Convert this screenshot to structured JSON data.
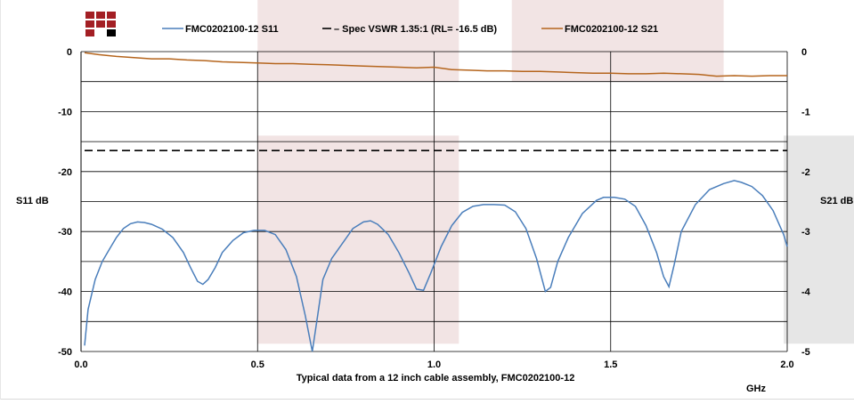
{
  "chart_data": {
    "type": "line",
    "title": "",
    "xlabel": "Typical data from a 12 inch cable assembly, FMC0202100-12",
    "xunit": "GHz",
    "ylabel_left": "S11 dB",
    "ylabel_right": "S21 dB",
    "xlim": [
      0,
      2.0
    ],
    "ylim_left": [
      -50,
      0
    ],
    "ylim_right": [
      -5,
      0
    ],
    "x_ticks": [
      "0.0",
      "0.5",
      "1.0",
      "1.5",
      "2.0"
    ],
    "y_ticks_left": [
      "0",
      "-10",
      "-20",
      "-30",
      "-40",
      "-50"
    ],
    "y_ticks_right": [
      "0",
      "-1",
      "-2",
      "-3",
      "-4",
      "-5"
    ],
    "grid": true,
    "legend_position": "top",
    "series": [
      {
        "name": "FMC0202100-12 S11",
        "axis": "left",
        "color": "#4a7ebb",
        "style": "solid",
        "points": [
          [
            0.01,
            -49
          ],
          [
            0.02,
            -43
          ],
          [
            0.04,
            -38
          ],
          [
            0.06,
            -35
          ],
          [
            0.08,
            -33
          ],
          [
            0.1,
            -31
          ],
          [
            0.12,
            -29.5
          ],
          [
            0.14,
            -28.7
          ],
          [
            0.16,
            -28.4
          ],
          [
            0.18,
            -28.5
          ],
          [
            0.2,
            -28.8
          ],
          [
            0.23,
            -29.6
          ],
          [
            0.26,
            -31
          ],
          [
            0.29,
            -33.5
          ],
          [
            0.31,
            -36
          ],
          [
            0.33,
            -38.3
          ],
          [
            0.345,
            -38.8
          ],
          [
            0.36,
            -38
          ],
          [
            0.38,
            -36
          ],
          [
            0.4,
            -33.5
          ],
          [
            0.43,
            -31.5
          ],
          [
            0.46,
            -30.2
          ],
          [
            0.49,
            -29.8
          ],
          [
            0.52,
            -29.8
          ],
          [
            0.55,
            -30.5
          ],
          [
            0.58,
            -33
          ],
          [
            0.61,
            -37.5
          ],
          [
            0.635,
            -44
          ],
          [
            0.655,
            -50
          ],
          [
            0.67,
            -44
          ],
          [
            0.685,
            -38
          ],
          [
            0.71,
            -34.5
          ],
          [
            0.74,
            -32
          ],
          [
            0.77,
            -29.5
          ],
          [
            0.8,
            -28.4
          ],
          [
            0.82,
            -28.2
          ],
          [
            0.84,
            -28.8
          ],
          [
            0.87,
            -30.5
          ],
          [
            0.9,
            -33.5
          ],
          [
            0.93,
            -37
          ],
          [
            0.95,
            -39.6
          ],
          [
            0.97,
            -39.8
          ],
          [
            0.99,
            -37
          ],
          [
            1.02,
            -32.5
          ],
          [
            1.05,
            -29
          ],
          [
            1.08,
            -26.8
          ],
          [
            1.11,
            -25.8
          ],
          [
            1.14,
            -25.5
          ],
          [
            1.17,
            -25.5
          ],
          [
            1.2,
            -25.6
          ],
          [
            1.23,
            -26.7
          ],
          [
            1.26,
            -29.5
          ],
          [
            1.29,
            -34.5
          ],
          [
            1.315,
            -40
          ],
          [
            1.33,
            -39.3
          ],
          [
            1.35,
            -35
          ],
          [
            1.38,
            -31
          ],
          [
            1.42,
            -27
          ],
          [
            1.46,
            -24.8
          ],
          [
            1.48,
            -24.3
          ],
          [
            1.51,
            -24.3
          ],
          [
            1.54,
            -24.6
          ],
          [
            1.57,
            -25.8
          ],
          [
            1.6,
            -29
          ],
          [
            1.63,
            -33.5
          ],
          [
            1.65,
            -37.5
          ],
          [
            1.665,
            -39.2
          ],
          [
            1.68,
            -35.5
          ],
          [
            1.7,
            -30
          ],
          [
            1.74,
            -25.5
          ],
          [
            1.78,
            -23
          ],
          [
            1.82,
            -22
          ],
          [
            1.85,
            -21.5
          ],
          [
            1.87,
            -21.8
          ],
          [
            1.9,
            -22.5
          ],
          [
            1.93,
            -24
          ],
          [
            1.96,
            -26.5
          ],
          [
            1.99,
            -30.5
          ],
          [
            2.0,
            -32.5
          ]
        ]
      },
      {
        "name": "Spec VSWR 1.35:1 (RL= -16.5 dB)",
        "legend_label": "– Spec VSWR 1.35:1 (RL= -16.5 dB)",
        "axis": "left",
        "color": "#000000",
        "style": "dashed",
        "points": [
          [
            0.01,
            -16.5
          ],
          [
            2.0,
            -16.5
          ]
        ]
      },
      {
        "name": "FMC0202100-12 S21",
        "axis": "right",
        "color": "#b5651d",
        "style": "solid",
        "points": [
          [
            0.01,
            -0.02
          ],
          [
            0.05,
            -0.05
          ],
          [
            0.1,
            -0.08
          ],
          [
            0.15,
            -0.1
          ],
          [
            0.2,
            -0.12
          ],
          [
            0.25,
            -0.12
          ],
          [
            0.3,
            -0.14
          ],
          [
            0.35,
            -0.15
          ],
          [
            0.4,
            -0.17
          ],
          [
            0.45,
            -0.18
          ],
          [
            0.5,
            -0.19
          ],
          [
            0.55,
            -0.2
          ],
          [
            0.6,
            -0.2
          ],
          [
            0.65,
            -0.21
          ],
          [
            0.7,
            -0.22
          ],
          [
            0.75,
            -0.23
          ],
          [
            0.8,
            -0.24
          ],
          [
            0.85,
            -0.25
          ],
          [
            0.9,
            -0.26
          ],
          [
            0.95,
            -0.27
          ],
          [
            1.0,
            -0.26
          ],
          [
            1.05,
            -0.3
          ],
          [
            1.1,
            -0.31
          ],
          [
            1.15,
            -0.32
          ],
          [
            1.2,
            -0.32
          ],
          [
            1.25,
            -0.33
          ],
          [
            1.3,
            -0.33
          ],
          [
            1.35,
            -0.34
          ],
          [
            1.4,
            -0.35
          ],
          [
            1.45,
            -0.36
          ],
          [
            1.5,
            -0.36
          ],
          [
            1.55,
            -0.37
          ],
          [
            1.6,
            -0.37
          ],
          [
            1.65,
            -0.36
          ],
          [
            1.7,
            -0.37
          ],
          [
            1.75,
            -0.38
          ],
          [
            1.8,
            -0.41
          ],
          [
            1.85,
            -0.4
          ],
          [
            1.9,
            -0.41
          ],
          [
            1.95,
            -0.4
          ],
          [
            2.0,
            -0.4
          ]
        ]
      }
    ],
    "bands": [
      {
        "x": [
          0.5,
          1.07
        ],
        "y_left": [
          -48.7,
          -14.0
        ],
        "color": "#f2e4e4"
      },
      {
        "x": [
          0.5,
          1.07
        ],
        "y_left": [
          -5,
          0
        ],
        "extends_above_plot": true,
        "color": "#f2e4e4"
      },
      {
        "x": [
          1.22,
          1.82
        ],
        "y_left": [
          -5,
          0
        ],
        "extends_above_plot": true,
        "color": "#f2e4e4"
      },
      {
        "x": [
          1.99,
          2.2
        ],
        "y_left": [
          -48.7,
          -14.0
        ],
        "color": "#e6e6e6"
      }
    ],
    "gridlines_left": [
      0,
      -5,
      -10,
      -15,
      -20,
      -25,
      -30,
      -35,
      -40,
      -45,
      -50
    ],
    "vertical_gridlines": [
      0.5,
      1.0,
      1.5,
      2.0
    ]
  },
  "logo": {
    "icon": "company-logo-icon",
    "colors": [
      "#a31f24",
      "#000000"
    ]
  }
}
